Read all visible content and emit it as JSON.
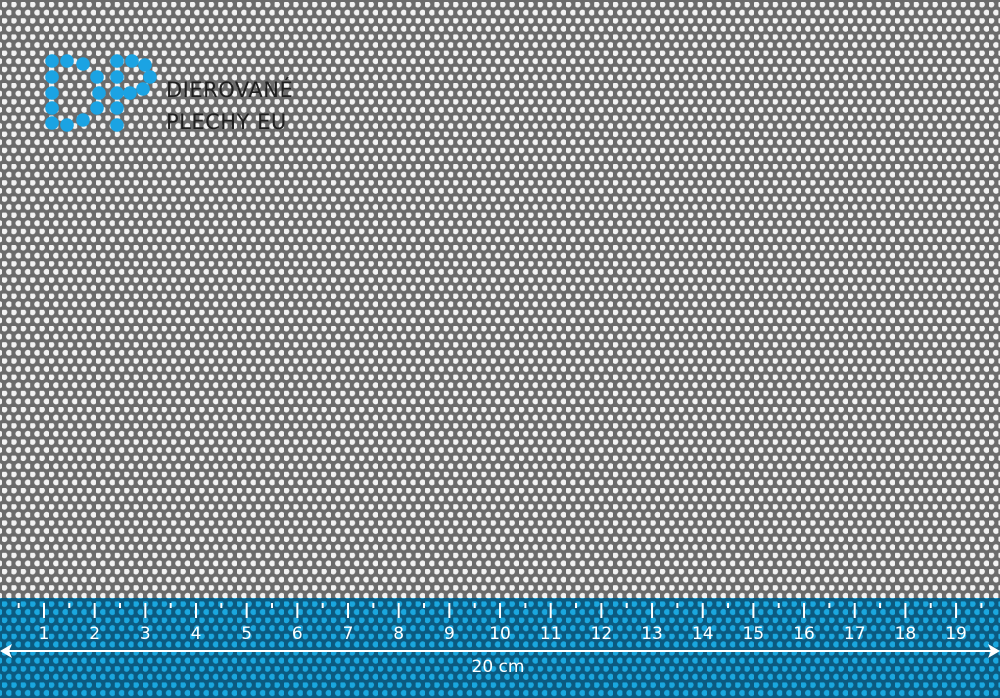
{
  "brand": {
    "name_line1": "DIEROVANÉ",
    "name_line2": "PLECHY EU",
    "monogram": "DP",
    "logo_color": "#1ba3e3"
  },
  "sheet": {
    "metal_color": "#6b6b6b",
    "hole_color": "#f4f4f4",
    "pattern": "staggered round holes"
  },
  "ruler": {
    "band_color": "#0b5a80",
    "band_hole_color": "#1aa7df",
    "tick_labels": [
      "1",
      "2",
      "3",
      "4",
      "5",
      "6",
      "7",
      "8",
      "9",
      "10",
      "11",
      "12",
      "13",
      "14",
      "15",
      "16",
      "17",
      "18",
      "19"
    ],
    "dimension_label": "20 cm"
  }
}
